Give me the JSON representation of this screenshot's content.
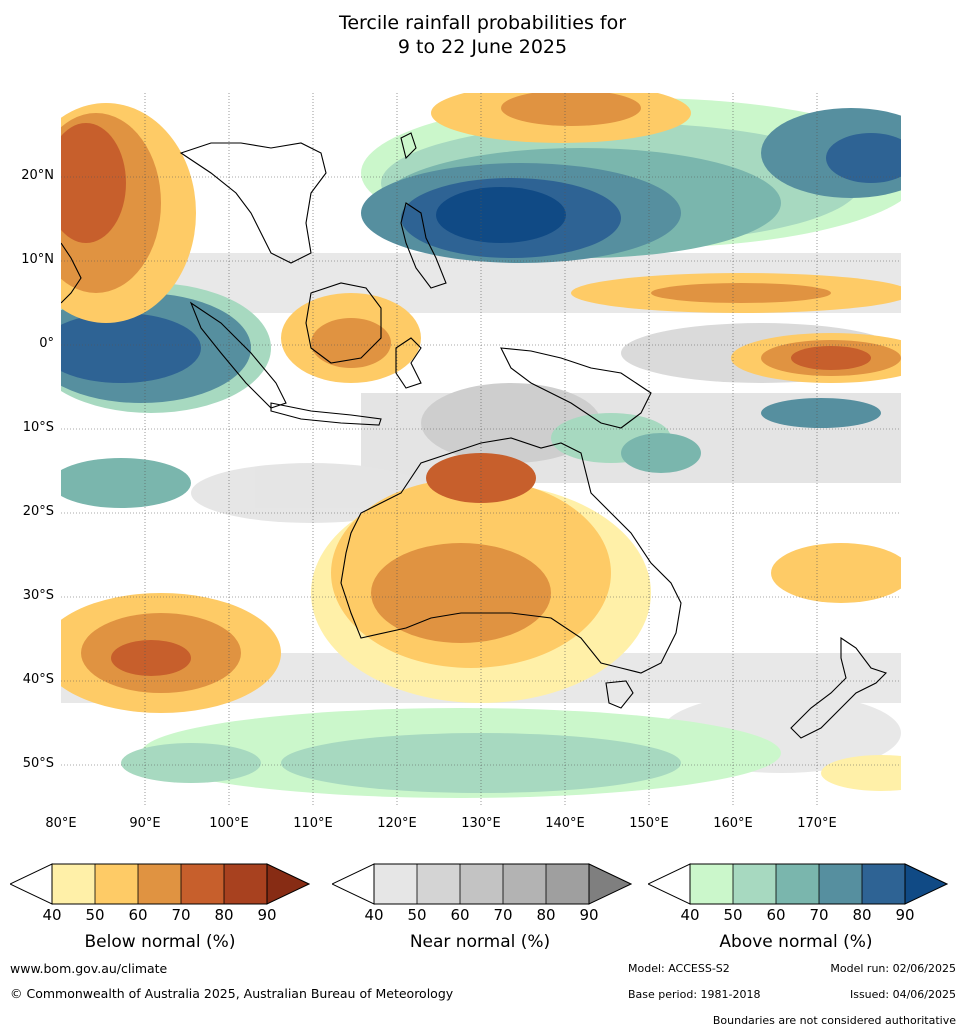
{
  "title_line1": "Tercile rainfall probabilities for",
  "title_line2": "9 to 22 June 2025",
  "lat_labels": [
    "20°N",
    "10°N",
    "0°",
    "10°S",
    "20°S",
    "30°S",
    "40°S",
    "50°S"
  ],
  "lon_labels": [
    "80°E",
    "90°E",
    "100°E",
    "110°E",
    "120°E",
    "130°E",
    "140°E",
    "150°E",
    "160°E",
    "170°E"
  ],
  "colorbars": [
    {
      "title": "Below normal (%)",
      "ticks": [
        "40",
        "50",
        "60",
        "70",
        "80",
        "90"
      ],
      "colors": [
        "#fff0a8",
        "#fecb66",
        "#e09341",
        "#c75f2c",
        "#a8411f",
        "#872c14"
      ]
    },
    {
      "title": "Near normal (%)",
      "ticks": [
        "40",
        "50",
        "60",
        "70",
        "80",
        "90"
      ],
      "colors": [
        "#e6e6e6",
        "#d4d4d4",
        "#c3c3c3",
        "#b3b3b3",
        "#9f9f9f",
        "#7f7f7f"
      ]
    },
    {
      "title": "Above normal (%)",
      "ticks": [
        "40",
        "50",
        "60",
        "70",
        "80",
        "90"
      ],
      "colors": [
        "#cbf7cb",
        "#a7d9c0",
        "#7ab6ad",
        "#568f9f",
        "#2e6394",
        "#104a85"
      ]
    }
  ],
  "footer": {
    "website": "www.bom.gov.au/climate",
    "copyright": "© Commonwealth of Australia 2025, Australian Bureau of Meteorology",
    "model": "Model: ACCESS-S2",
    "model_run": "Model run: 02/06/2025",
    "base_period": "Base period: 1981-2018",
    "issued": "Issued: 04/06/2025",
    "disclaimer": "Boundaries are not considered authoritative"
  }
}
